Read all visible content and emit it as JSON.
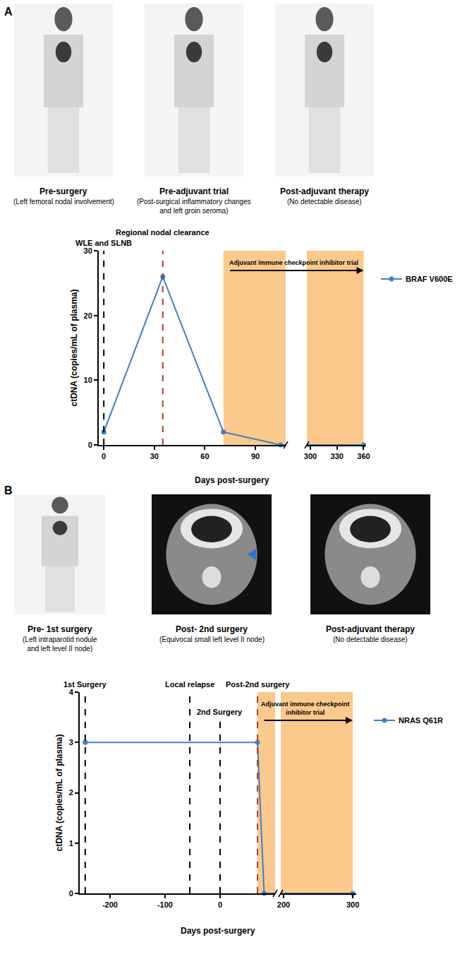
{
  "chart_data": [
    {
      "type": "line",
      "panel": "A",
      "images": [
        {
          "caption": "Pre-surgery",
          "subcaption": [
            "(Left femoral nodal involvement)"
          ]
        },
        {
          "caption": "Pre-adjuvant trial",
          "subcaption": [
            "(Post-surgical inflammatory changes",
            "and left groin seroma)"
          ]
        },
        {
          "caption": "Post-adjuvant therapy",
          "subcaption": [
            "(No detectable disease)"
          ]
        }
      ],
      "x_label": "Days post-surgery",
      "y_label": "ctDNA (copies/mL of plasma)",
      "xlim": [
        [
          -3,
          108
        ],
        [
          296,
          362
        ]
      ],
      "xticks": [
        [
          0,
          30,
          60,
          90
        ],
        [
          300,
          330,
          360
        ]
      ],
      "ylim": [
        0,
        30
      ],
      "yticks": [
        0,
        10,
        20,
        30
      ],
      "grid": false,
      "legend": "right",
      "series": [
        {
          "name": "BRAF V600E",
          "color": "#3f7fc6",
          "marker": "circle",
          "x": [
            0,
            35,
            71,
            105,
            360
          ],
          "values": [
            2,
            26,
            2,
            0,
            0
          ]
        }
      ],
      "events": [
        {
          "x": 0,
          "label": "WLE and SLNB",
          "color": "#000000"
        },
        {
          "x": 35,
          "label": "Regional nodal clearance",
          "color": "#b03a2e"
        }
      ],
      "shaded": {
        "x": [
          71,
          360
        ],
        "label": "Adjuvant immune checkpoint inhibitor trial",
        "color": "#fcc98c"
      }
    },
    {
      "type": "line",
      "panel": "B",
      "images": [
        {
          "caption": "Pre- 1st surgery",
          "subcaption": [
            "(Left intraparotid nodule",
            "and left level II node)"
          ]
        },
        {
          "caption": "Post- 2nd surgery",
          "subcaption": [
            "(Equivocal small left level II node)"
          ]
        },
        {
          "caption": "Post-adjuvant therapy",
          "subcaption": [
            "(No detectable disease)"
          ]
        }
      ],
      "x_label": "Days post-surgery",
      "y_label": "ctDNA (copies/mL of plasma)",
      "xlim": [
        [
          -255,
          100
        ],
        [
          196,
          305
        ]
      ],
      "xticks": [
        [
          -200,
          -100,
          0
        ],
        [
          200,
          300
        ]
      ],
      "ylim": [
        0,
        4
      ],
      "yticks": [
        0,
        1,
        2,
        3,
        4
      ],
      "grid": false,
      "legend": "right",
      "series": [
        {
          "name": "NRAS Q61R",
          "color": "#3f7fc6",
          "marker": "circle",
          "x": [
            -245,
            68,
            80,
            300
          ],
          "values": [
            3,
            3,
            0,
            0
          ]
        }
      ],
      "events": [
        {
          "x": -245,
          "label": "1st Surgery",
          "color": "#000000"
        },
        {
          "x": -55,
          "label": "Local relapse",
          "color": "#000000"
        },
        {
          "x": 0,
          "label": "2nd Surgery",
          "color": "#000000",
          "y_end": 3.5
        },
        {
          "x": 68,
          "label": "Post-2nd surgery",
          "color": "#b03a2e"
        }
      ],
      "shaded": {
        "x": [
          68,
          300
        ],
        "label": "Adjuvant immune checkpoint inhibitor trial",
        "color": "#fcc98c"
      }
    }
  ]
}
